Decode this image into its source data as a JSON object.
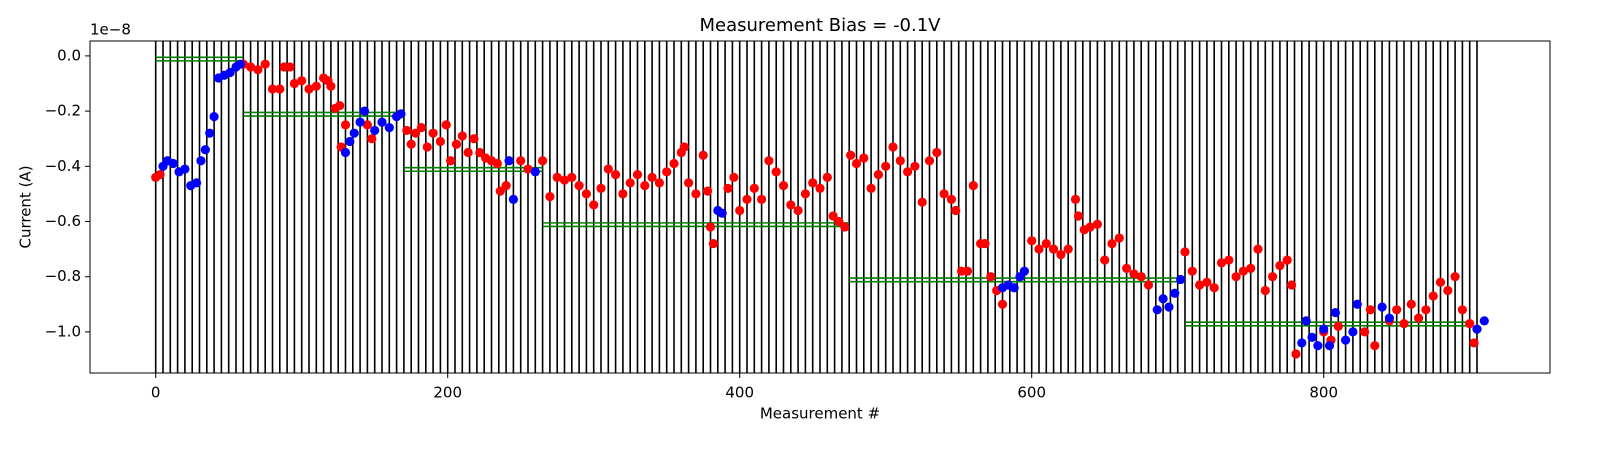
{
  "chart_data": {
    "type": "scatter",
    "title": "Measurement Bias = -0.1V",
    "x_label": "Measurement #",
    "y_label": "Current (A)",
    "y_offset_label": "1e−8",
    "xlim": [
      -45,
      955
    ],
    "ylim": [
      -1.149,
      0.054
    ],
    "xticks": [
      0,
      200,
      400,
      600,
      800
    ],
    "yticks": [
      {
        "value": -1.0,
        "label": "−1.0"
      },
      {
        "value": -0.8,
        "label": "−0.8"
      },
      {
        "value": -0.6,
        "label": "−0.6"
      },
      {
        "value": -0.4,
        "label": "−0.4"
      },
      {
        "value": -0.2,
        "label": "−0.2"
      },
      {
        "value": 0,
        "label": "0.0"
      }
    ],
    "vlines_color": "#000000",
    "vlines": [
      0,
      5,
      10,
      15,
      20,
      25,
      30,
      35,
      40,
      45,
      50,
      55,
      60,
      65,
      70,
      75,
      80,
      85,
      90,
      95,
      100,
      105,
      110,
      115,
      120,
      125,
      130,
      135,
      140,
      145,
      150,
      155,
      160,
      165,
      170,
      175,
      180,
      185,
      190,
      195,
      200,
      205,
      210,
      215,
      220,
      225,
      230,
      235,
      240,
      245,
      250,
      255,
      260,
      265,
      270,
      275,
      280,
      285,
      290,
      295,
      300,
      305,
      310,
      315,
      320,
      325,
      330,
      335,
      340,
      345,
      350,
      355,
      360,
      365,
      370,
      375,
      380,
      385,
      390,
      395,
      400,
      405,
      410,
      415,
      420,
      425,
      430,
      435,
      440,
      445,
      450,
      455,
      460,
      465,
      470,
      475,
      480,
      485,
      490,
      495,
      500,
      505,
      510,
      515,
      520,
      525,
      530,
      535,
      540,
      545,
      550,
      555,
      560,
      565,
      570,
      575,
      580,
      585,
      590,
      595,
      600,
      605,
      610,
      615,
      620,
      625,
      630,
      635,
      640,
      645,
      650,
      655,
      660,
      665,
      670,
      675,
      680,
      685,
      690,
      695,
      700,
      705,
      710,
      715,
      720,
      725,
      730,
      735,
      740,
      745,
      750,
      755,
      760,
      765,
      770,
      775,
      780,
      785,
      790,
      795,
      800,
      805,
      810,
      815,
      820,
      825,
      830,
      835,
      840,
      845,
      850,
      855,
      860,
      865,
      870,
      875,
      880,
      885,
      890,
      895,
      900,
      905
    ],
    "hlines_color": "#008000",
    "hlines": [
      {
        "xmin": 0,
        "xmax": 60,
        "y": [
          -0.005,
          -0.018
        ]
      },
      {
        "xmin": 60,
        "xmax": 170,
        "y": [
          -0.205,
          -0.218
        ]
      },
      {
        "xmin": 170,
        "xmax": 265,
        "y": [
          -0.405,
          -0.418
        ]
      },
      {
        "xmin": 265,
        "xmax": 475,
        "y": [
          -0.605,
          -0.618
        ]
      },
      {
        "xmin": 475,
        "xmax": 705,
        "y": [
          -0.805,
          -0.818
        ]
      },
      {
        "xmin": 705,
        "xmax": 900,
        "y": [
          -0.965,
          -0.978
        ]
      }
    ],
    "series": [
      {
        "color": "#ff0000",
        "x": [
          0,
          3,
          60,
          65,
          70,
          75,
          80,
          85,
          88,
          92,
          95,
          100,
          105,
          110,
          115,
          118,
          120,
          123,
          126,
          127,
          130,
          145,
          148,
          172,
          175,
          178,
          182,
          186,
          190,
          195,
          199,
          202,
          206,
          210,
          214,
          218,
          222,
          226,
          230,
          234,
          236,
          240,
          250,
          255,
          265,
          270,
          275,
          280,
          285,
          290,
          295,
          300,
          305,
          310,
          315,
          320,
          325,
          330,
          335,
          340,
          345,
          350,
          355,
          360,
          362,
          365,
          370,
          375,
          378,
          380,
          382,
          392,
          396,
          400,
          405,
          410,
          415,
          420,
          425,
          430,
          435,
          440,
          445,
          450,
          455,
          460,
          464,
          468,
          472,
          476,
          480,
          485,
          490,
          495,
          500,
          505,
          510,
          515,
          520,
          525,
          530,
          535,
          540,
          545,
          548,
          552,
          556,
          560,
          565,
          568,
          572,
          576,
          580,
          600,
          605,
          610,
          615,
          620,
          625,
          630,
          632,
          636,
          640,
          645,
          650,
          655,
          660,
          665,
          670,
          675,
          680,
          705,
          710,
          715,
          720,
          725,
          730,
          735,
          740,
          745,
          750,
          755,
          760,
          765,
          770,
          775,
          778,
          781,
          800,
          805,
          810,
          828,
          832,
          835,
          845,
          850,
          855,
          860,
          865,
          870,
          875,
          880,
          885,
          890,
          895,
          900,
          903
        ],
        "values": [
          -0.44,
          -0.43,
          -0.03,
          -0.04,
          -0.05,
          -0.03,
          -0.12,
          -0.12,
          -0.04,
          -0.04,
          -0.1,
          -0.09,
          -0.12,
          -0.11,
          -0.08,
          -0.09,
          -0.11,
          -0.19,
          -0.18,
          -0.33,
          -0.25,
          -0.25,
          -0.3,
          -0.27,
          -0.32,
          -0.28,
          -0.26,
          -0.33,
          -0.28,
          -0.31,
          -0.25,
          -0.38,
          -0.32,
          -0.29,
          -0.35,
          -0.3,
          -0.35,
          -0.37,
          -0.38,
          -0.39,
          -0.49,
          -0.47,
          -0.38,
          -0.41,
          -0.38,
          -0.51,
          -0.44,
          -0.45,
          -0.44,
          -0.47,
          -0.5,
          -0.54,
          -0.48,
          -0.41,
          -0.43,
          -0.5,
          -0.46,
          -0.43,
          -0.47,
          -0.44,
          -0.46,
          -0.42,
          -0.39,
          -0.35,
          -0.33,
          -0.46,
          -0.5,
          -0.36,
          -0.49,
          -0.62,
          -0.68,
          -0.48,
          -0.44,
          -0.56,
          -0.52,
          -0.48,
          -0.52,
          -0.38,
          -0.42,
          -0.47,
          -0.54,
          -0.56,
          -0.5,
          -0.46,
          -0.48,
          -0.44,
          -0.58,
          -0.6,
          -0.62,
          -0.36,
          -0.39,
          -0.37,
          -0.48,
          -0.43,
          -0.4,
          -0.33,
          -0.38,
          -0.42,
          -0.4,
          -0.53,
          -0.38,
          -0.35,
          -0.5,
          -0.52,
          -0.56,
          -0.78,
          -0.78,
          -0.47,
          -0.68,
          -0.68,
          -0.8,
          -0.85,
          -0.9,
          -0.67,
          -0.7,
          -0.68,
          -0.7,
          -0.72,
          -0.7,
          -0.52,
          -0.58,
          -0.63,
          -0.62,
          -0.61,
          -0.74,
          -0.68,
          -0.66,
          -0.77,
          -0.79,
          -0.8,
          -0.83,
          -0.71,
          -0.78,
          -0.83,
          -0.82,
          -0.84,
          -0.75,
          -0.74,
          -0.8,
          -0.78,
          -0.77,
          -0.7,
          -0.85,
          -0.8,
          -0.76,
          -0.74,
          -0.83,
          -1.08,
          -1.0,
          -1.03,
          -0.98,
          -1.0,
          -0.92,
          -1.05,
          -0.96,
          -0.92,
          -0.97,
          -0.9,
          -0.95,
          -0.92,
          -0.87,
          -0.82,
          -0.85,
          -0.8,
          -0.92,
          -0.97,
          -1.04
        ]
      },
      {
        "color": "#0000ff",
        "x": [
          5,
          8,
          12,
          16,
          20,
          24,
          28,
          31,
          34,
          37,
          40,
          43,
          47,
          51,
          55,
          58,
          130,
          133,
          136,
          140,
          143,
          150,
          155,
          160,
          165,
          168,
          242,
          245,
          260,
          385,
          388,
          580,
          584,
          588,
          592,
          595,
          686,
          690,
          694,
          698,
          702,
          785,
          788,
          792,
          796,
          800,
          804,
          808,
          815,
          820,
          823,
          840,
          845,
          905,
          910
        ],
        "values": [
          -0.4,
          -0.38,
          -0.39,
          -0.42,
          -0.41,
          -0.47,
          -0.46,
          -0.38,
          -0.34,
          -0.28,
          -0.22,
          -0.08,
          -0.07,
          -0.06,
          -0.04,
          -0.03,
          -0.35,
          -0.31,
          -0.28,
          -0.24,
          -0.2,
          -0.27,
          -0.24,
          -0.26,
          -0.22,
          -0.21,
          -0.38,
          -0.52,
          -0.42,
          -0.56,
          -0.57,
          -0.84,
          -0.83,
          -0.84,
          -0.8,
          -0.78,
          -0.92,
          -0.88,
          -0.91,
          -0.86,
          -0.81,
          -1.04,
          -0.96,
          -1.02,
          -1.05,
          -0.99,
          -1.05,
          -0.93,
          -1.03,
          -1.0,
          -0.9,
          -0.91,
          -0.95,
          -0.99,
          -0.96
        ]
      }
    ]
  }
}
